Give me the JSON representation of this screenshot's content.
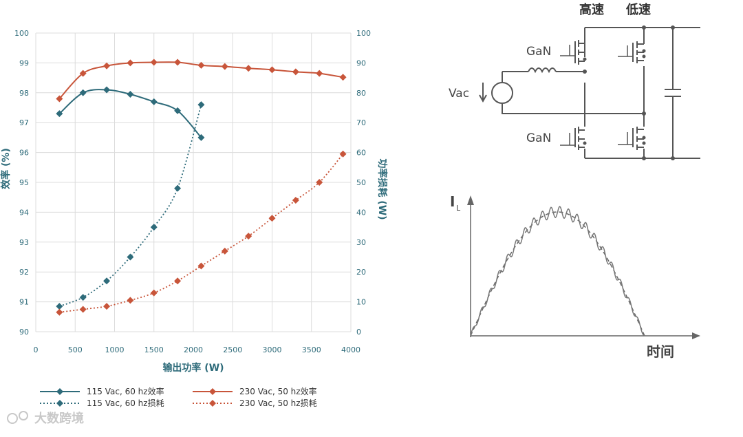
{
  "colors": {
    "teal": "#2e6b7a",
    "orange": "#c8553a",
    "grid": "#dcdcdc",
    "wire": "#555555"
  },
  "chart_data": {
    "type": "line",
    "xlabel": "输出功率 (W)",
    "ylabel_left": "效率 (%)",
    "ylabel_right": "功率损耗 (W)",
    "xlim": [
      0,
      4000
    ],
    "ylim_left": [
      90,
      100
    ],
    "ylim_right": [
      0,
      100
    ],
    "x_ticks": [
      "0",
      "500",
      "1000",
      "1500",
      "2000",
      "2500",
      "3000",
      "3500",
      "4000"
    ],
    "y_left_ticks": [
      "90",
      "91",
      "92",
      "93",
      "94",
      "95",
      "96",
      "97",
      "98",
      "99",
      "100"
    ],
    "y_right_ticks": [
      "0",
      "10",
      "20",
      "30",
      "40",
      "50",
      "60",
      "70",
      "80",
      "90",
      "100"
    ],
    "grid": true,
    "legend_position": "bottom",
    "series": [
      {
        "name": "115 Vac, 60 hz效率",
        "axis": "left",
        "style": "solid",
        "color": "#2e6b7a",
        "x": [
          300,
          600,
          900,
          1200,
          1500,
          1800,
          2100
        ],
        "y": [
          97.3,
          98.0,
          98.1,
          97.95,
          97.7,
          97.4,
          96.5
        ]
      },
      {
        "name": "230 Vac, 50 hz效率",
        "axis": "left",
        "style": "solid",
        "color": "#c8553a",
        "x": [
          300,
          600,
          900,
          1200,
          1500,
          1800,
          2100,
          2400,
          2700,
          3000,
          3300,
          3600,
          3900
        ],
        "y": [
          97.8,
          98.65,
          98.9,
          99.0,
          99.02,
          99.02,
          98.92,
          98.88,
          98.82,
          98.77,
          98.7,
          98.65,
          98.52
        ]
      },
      {
        "name": "115 Vac, 60 hz损耗",
        "axis": "right",
        "style": "dotted",
        "color": "#2e6b7a",
        "x": [
          300,
          600,
          900,
          1200,
          1500,
          1800,
          2100
        ],
        "y": [
          8.5,
          11.5,
          17,
          25,
          35,
          48,
          76
        ]
      },
      {
        "name": "230 Vac, 50 hz损耗",
        "axis": "right",
        "style": "dotted",
        "color": "#c8553a",
        "x": [
          300,
          600,
          900,
          1200,
          1500,
          1800,
          2100,
          2400,
          2700,
          3000,
          3300,
          3600,
          3900
        ],
        "y": [
          6.5,
          7.5,
          8.5,
          10.5,
          13,
          17,
          22,
          27,
          32,
          38,
          44,
          50,
          59.5
        ]
      }
    ]
  },
  "circuit": {
    "header_fast": "高速",
    "header_slow": "低速",
    "gan_top": "GaN",
    "gan_bottom": "GaN",
    "vac": "Vac"
  },
  "current_graph": {
    "ylabel": "I",
    "ylabel_sub": "L",
    "xlabel": "时间"
  },
  "watermark": "大数跨境"
}
